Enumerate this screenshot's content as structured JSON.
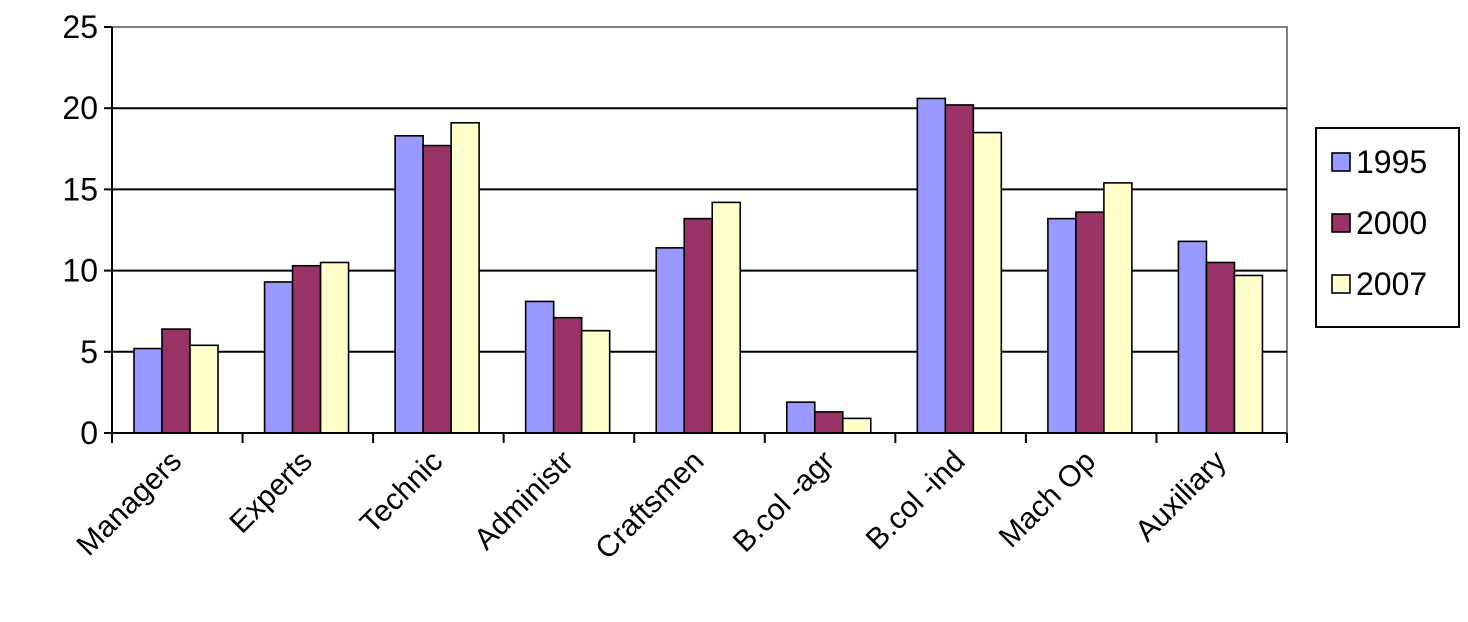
{
  "chart_data": {
    "type": "bar",
    "title": "",
    "xlabel": "",
    "ylabel": "",
    "ylim": [
      0,
      25
    ],
    "yticks": [
      0,
      5,
      10,
      15,
      20,
      25
    ],
    "grid": true,
    "legend_position": "right",
    "categories": [
      "Managers",
      "Experts",
      "Technic",
      "Administr",
      "Craftsmen",
      "B.col -agr",
      "B.col -ind",
      "Mach Op",
      "Auxiliary"
    ],
    "series": [
      {
        "name": "1995",
        "color": "#9999FF",
        "values": [
          5.2,
          9.3,
          18.3,
          8.1,
          11.4,
          1.9,
          20.6,
          13.2,
          11.8
        ]
      },
      {
        "name": "2000",
        "color": "#993366",
        "values": [
          6.4,
          10.3,
          17.7,
          7.1,
          13.2,
          1.3,
          20.2,
          13.6,
          10.5
        ]
      },
      {
        "name": "2007",
        "color": "#FFFFCC",
        "values": [
          5.4,
          10.5,
          19.1,
          6.3,
          14.2,
          0.9,
          18.5,
          15.4,
          9.7
        ]
      }
    ]
  }
}
